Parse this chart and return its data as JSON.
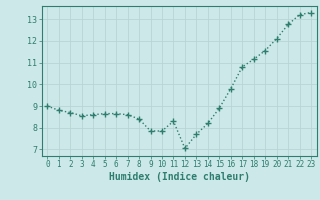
{
  "x": [
    0,
    1,
    2,
    3,
    4,
    5,
    6,
    7,
    8,
    9,
    10,
    11,
    12,
    13,
    14,
    15,
    16,
    17,
    18,
    19,
    20,
    21,
    22,
    23
  ],
  "y": [
    9.0,
    8.8,
    8.7,
    8.55,
    8.6,
    8.65,
    8.65,
    8.6,
    8.4,
    7.85,
    7.85,
    8.3,
    7.05,
    7.7,
    8.2,
    8.9,
    9.8,
    10.8,
    11.15,
    11.55,
    12.1,
    12.75,
    13.2,
    13.3
  ],
  "line_color": "#2e7d6e",
  "marker": "+",
  "marker_size": 4,
  "line_width": 1.0,
  "bg_color": "#cce8e8",
  "grid_color": "#b8d4d4",
  "xlabel": "Humidex (Indice chaleur)",
  "xlabel_fontsize": 7,
  "tick_color": "#2e7d6e",
  "yticks": [
    7,
    8,
    9,
    10,
    11,
    12,
    13
  ],
  "xticks": [
    0,
    1,
    2,
    3,
    4,
    5,
    6,
    7,
    8,
    9,
    10,
    11,
    12,
    13,
    14,
    15,
    16,
    17,
    18,
    19,
    20,
    21,
    22,
    23
  ],
  "ylim": [
    6.7,
    13.6
  ],
  "xlim": [
    -0.5,
    23.5
  ]
}
